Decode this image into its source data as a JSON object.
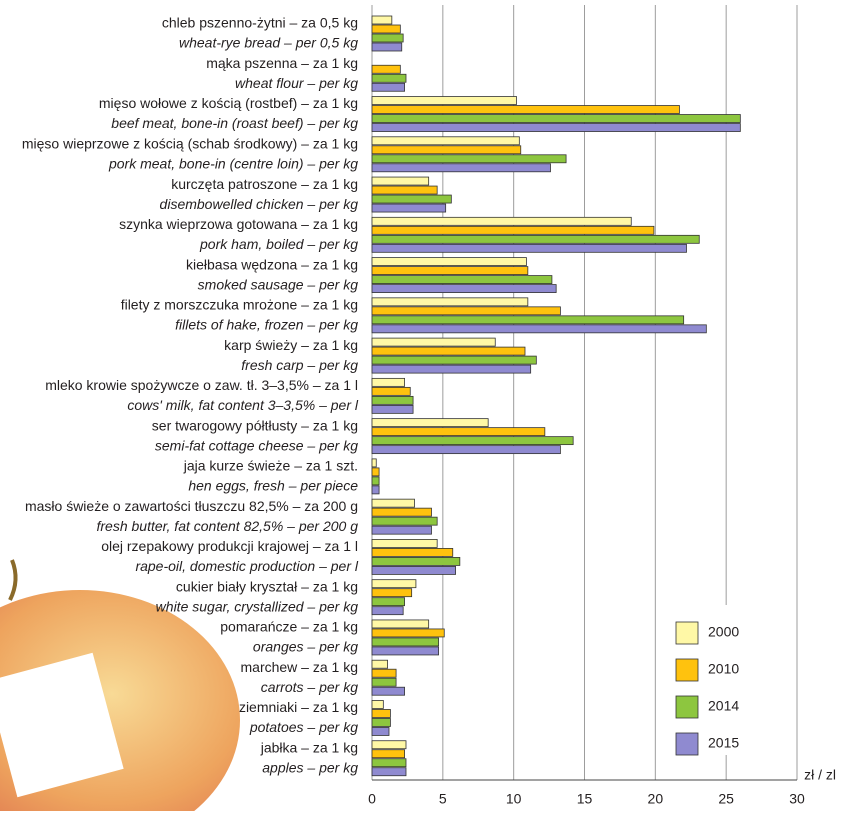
{
  "chart_data": {
    "type": "hbar",
    "x_unit_label": "zł / zl",
    "categories": [
      "chleb pszenno-żytni – za 0,5 kg",
      "mąka pszenna – za 1 kg",
      "mięso wołowe z kością (rostbef) – za 1 kg",
      "mięso wieprzowe z kością (schab środkowy) – za 1 kg",
      "kurczęta patroszone – za 1 kg",
      "szynka wieprzowa gotowana – za 1 kg",
      "kiełbasa wędzona – za 1 kg",
      "filety z morszczuka mrożone – za 1 kg",
      "karp świeży – za 1 kg",
      "mleko krowie spożywcze o zaw. tł. 3–3,5% – za 1 l",
      "ser twarogowy półtłusty – za 1 kg",
      "jaja kurze świeże – za 1 szt.",
      "masło świeże o zawartości tłuszczu 82,5% – za 200 g",
      "olej rzepakowy produkcji krajowej – za 1 l",
      "cukier biały kryształ – za 1 kg",
      "pomarańcze – za 1 kg",
      "marchew – za 1 kg",
      "ziemniaki – za 1 kg",
      "jabłka – za 1 kg"
    ],
    "categories_en": [
      "wheat-rye bread  – per 0,5 kg",
      "wheat flour – per kg",
      "beef meat, bone-in (roast beef) – per kg",
      "pork meat, bone-in (centre loin) – per kg",
      "disembowelled chicken – per kg",
      "pork ham, boiled – per kg",
      "smoked sausage – per kg",
      "fillets of hake, frozen – per kg",
      "fresh carp – per kg",
      "cows' milk, fat content 3–3,5% – per l",
      "semi-fat cottage cheese – per kg",
      "hen eggs, fresh – per piece",
      "fresh butter, fat content 82,5% – per 200 g",
      "rape-oil, domestic production – per l",
      "white sugar, crystallized – per kg",
      "oranges – per kg",
      "carrots – per kg",
      "potatoes – per kg",
      "apples – per kg"
    ],
    "series": [
      {
        "name": "2000",
        "color": "#fff8a6",
        "values": [
          1.4,
          null,
          10.2,
          10.4,
          4.0,
          18.3,
          10.9,
          11.0,
          8.7,
          2.3,
          8.2,
          0.3,
          3.0,
          4.6,
          3.1,
          4.0,
          1.1,
          0.8,
          2.4
        ]
      },
      {
        "name": "2010",
        "color": "#ffc20e",
        "values": [
          2.0,
          2.0,
          21.7,
          10.5,
          4.6,
          19.9,
          11.0,
          13.3,
          10.8,
          2.7,
          12.2,
          0.5,
          4.2,
          5.7,
          2.8,
          5.1,
          1.7,
          1.3,
          2.3
        ]
      },
      {
        "name": "2014",
        "color": "#8dc63f",
        "values": [
          2.2,
          2.4,
          26.0,
          13.7,
          5.6,
          23.1,
          12.7,
          22.0,
          11.6,
          2.9,
          14.2,
          0.5,
          4.6,
          6.2,
          2.3,
          4.7,
          1.7,
          1.3,
          2.4
        ]
      },
      {
        "name": "2015",
        "color": "#8f8ad0",
        "values": [
          2.1,
          2.3,
          26.0,
          12.6,
          5.2,
          22.2,
          13.0,
          23.6,
          11.2,
          2.9,
          13.3,
          0.5,
          4.2,
          5.9,
          2.2,
          4.7,
          2.3,
          1.2,
          2.4
        ]
      }
    ],
    "xlim": [
      0,
      30
    ],
    "xticks": [
      0,
      5,
      10,
      15,
      20,
      25,
      30
    ],
    "grid": true
  }
}
